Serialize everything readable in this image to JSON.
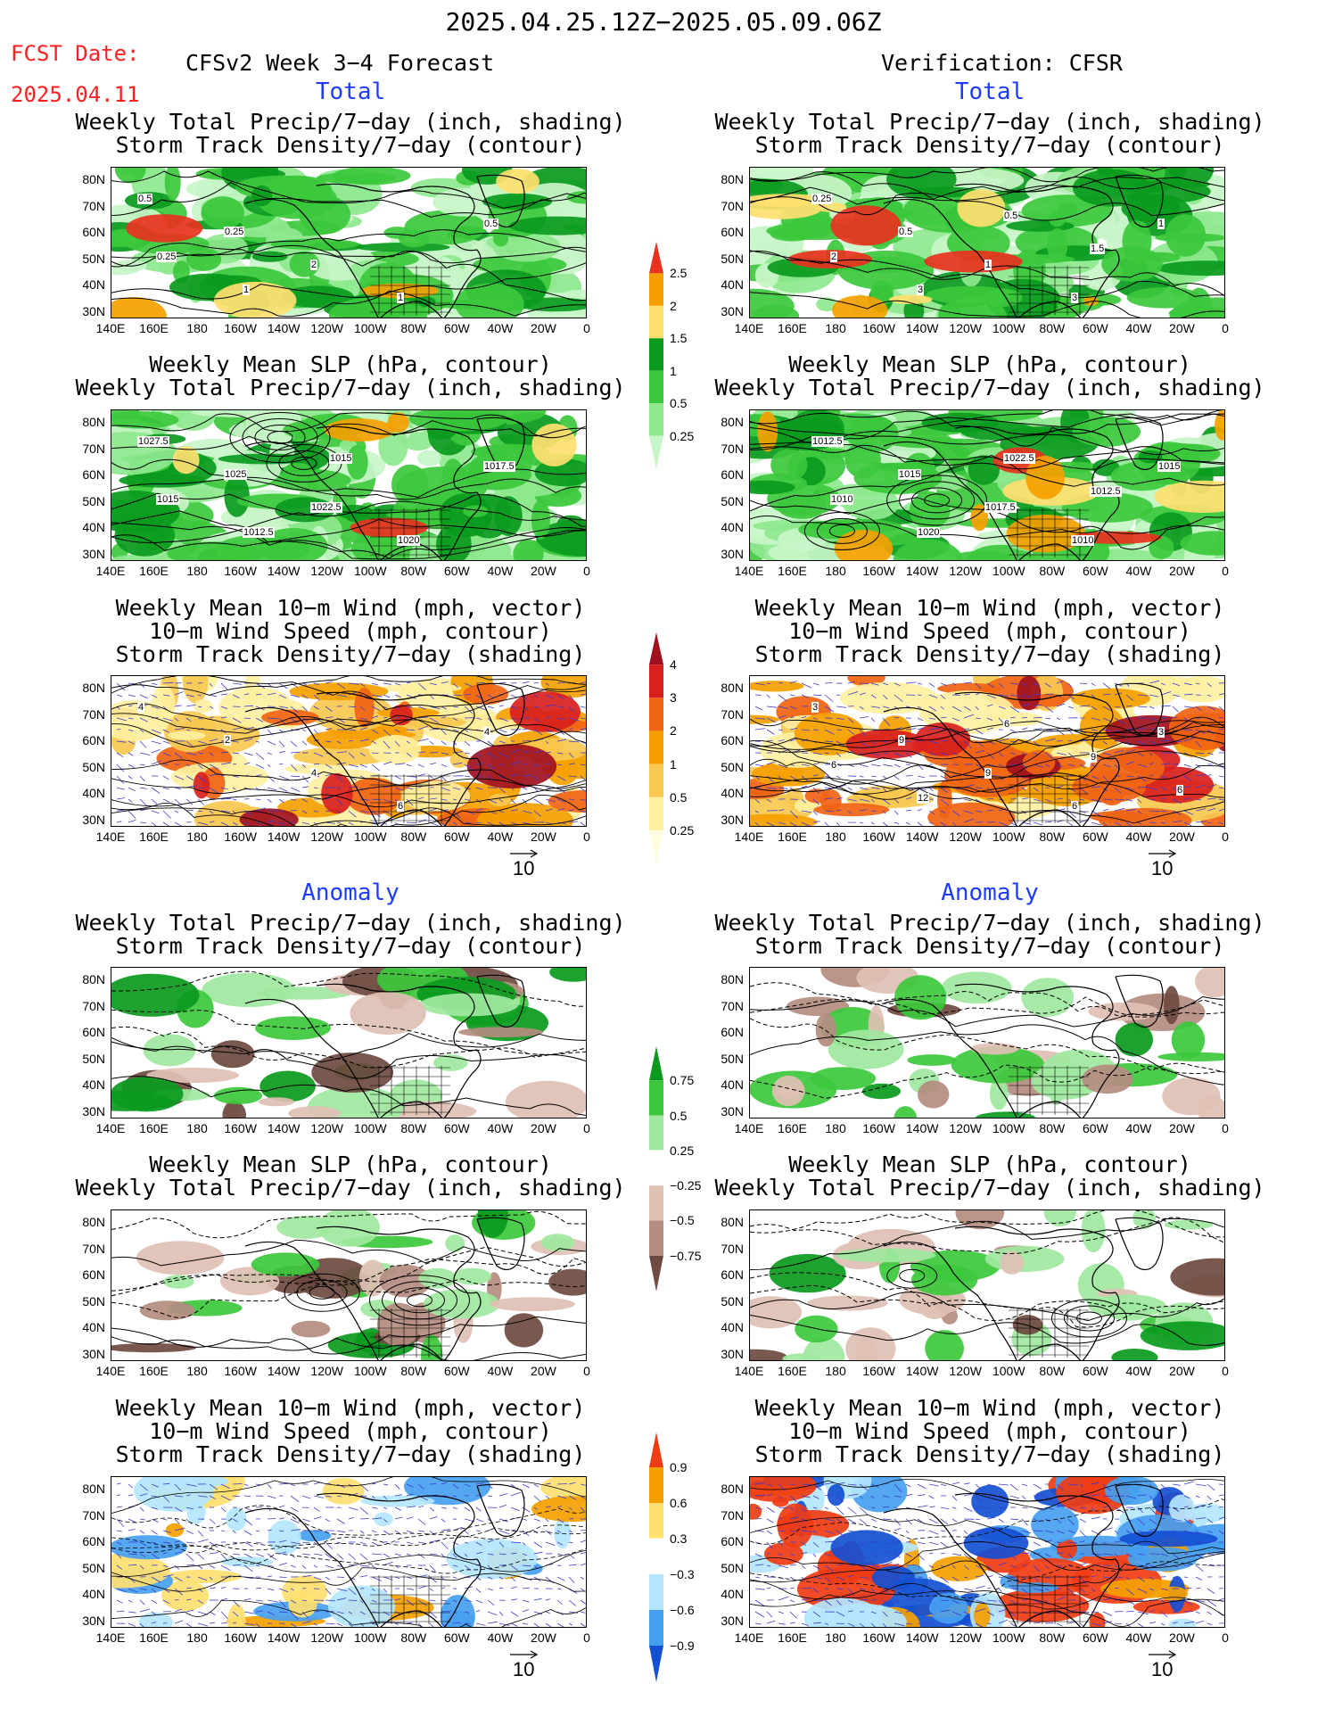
{
  "header": {
    "date_range": "2025.04.25.12Z−2025.05.09.06Z",
    "fcst_label": "FCST Date:",
    "fcst_date": "2025.04.11",
    "left_model": "CFSv2 Week 3−4 Forecast",
    "right_model": "Verification: CFSR"
  },
  "sections": {
    "total": "Total",
    "anomaly": "Anomaly"
  },
  "panel_titles": {
    "precip_track": [
      "Weekly Total Precip/7−day (inch, shading)",
      "Storm Track Density/7−day (contour)"
    ],
    "slp_precip": [
      "Weekly Mean SLP (hPa, contour)",
      "Weekly Total Precip/7−day (inch, shading)"
    ],
    "wind": [
      "Weekly Mean 10−m Wind (mph, vector)",
      "10−m Wind Speed (mph, contour)",
      "Storm Track Density/7−day (shading)"
    ]
  },
  "axes": {
    "lat_labels": [
      "80N",
      "70N",
      "60N",
      "50N",
      "40N",
      "30N"
    ],
    "lon_labels": [
      "140E",
      "160E",
      "180",
      "160W",
      "140W",
      "120W",
      "100W",
      "80W",
      "60W",
      "40W",
      "20W",
      "0"
    ]
  },
  "colorbars": {
    "precip_total": {
      "labels": [
        "2.5",
        "2",
        "1.5",
        "1",
        "0.5",
        "0.25"
      ],
      "colors": [
        "#e8321e",
        "#f5a000",
        "#ffe070",
        "#0a9a1e",
        "#3cc83c",
        "#8ee88e",
        "#c8f5c8"
      ]
    },
    "track_total": {
      "labels": [
        "4",
        "3",
        "2",
        "1",
        "0.5",
        "0.25"
      ],
      "colors": [
        "#a0101e",
        "#d8201e",
        "#f06414",
        "#f5a000",
        "#f8c850",
        "#fff0a0",
        "#fffde0"
      ]
    },
    "precip_anom": {
      "labels": [
        "0.75",
        "0.5",
        "0.25",
        "−0.25",
        "−0.5",
        "−0.75"
      ],
      "colors": [
        "#0a9a1e",
        "#3cc83c",
        "#a0e8a0",
        "#ffffff",
        "#e0c0b4",
        "#b48c80",
        "#6e4a40"
      ]
    },
    "track_anom": {
      "labels": [
        "0.9",
        "0.6",
        "0.3",
        "−0.3",
        "−0.6",
        "−0.9"
      ],
      "colors": [
        "#f03c14",
        "#f5a000",
        "#ffe070",
        "#ffffff",
        "#b4e6ff",
        "#46a0f0",
        "#1450d2"
      ]
    }
  },
  "vector_ref": "10",
  "contour_labels": {
    "fc_slp": [
      "1027.5",
      "1025",
      "1022.5",
      "1020",
      "1017.5",
      "1015",
      "1012.5",
      "1015"
    ],
    "ob_slp": [
      "1012.5",
      "1015",
      "1017.5",
      "1010",
      "1015",
      "1010",
      "1020",
      "1022.5",
      "1012.5"
    ],
    "fc_track": [
      "0.5",
      "0.25",
      "2",
      "1",
      "0.5",
      "0.25",
      "1"
    ],
    "ob_track": [
      "0.25",
      "0.5",
      "1",
      "3",
      "1",
      "2",
      "3",
      "0.5",
      "1.5"
    ],
    "fc_wind": [
      "4",
      "2",
      "4",
      "6",
      "4"
    ],
    "ob_wind": [
      "3",
      "9",
      "9",
      "6",
      "3",
      "6",
      "12",
      "6",
      "9",
      "6"
    ]
  }
}
